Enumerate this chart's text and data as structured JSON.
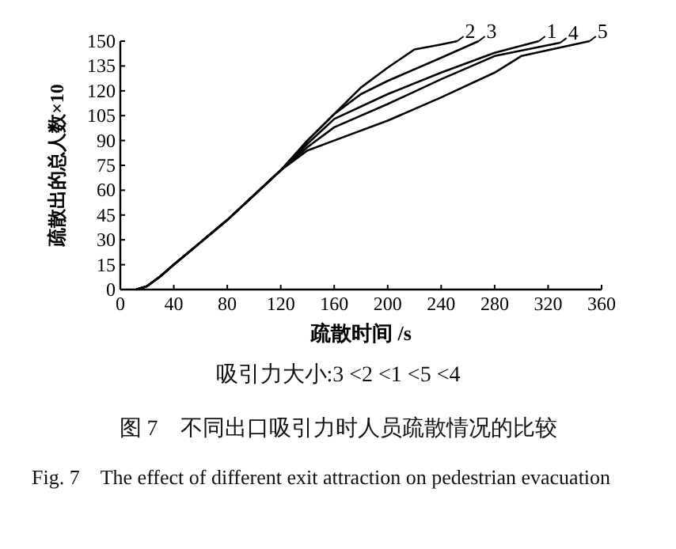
{
  "chart_data": {
    "type": "line",
    "xlabel": "疏散时间 /s",
    "ylabel": "疏散出的总人数×10",
    "xlim": [
      0,
      360
    ],
    "ylim": [
      0,
      150
    ],
    "xticks": [
      0,
      40,
      80,
      120,
      160,
      200,
      240,
      280,
      320,
      360
    ],
    "yticks": [
      0,
      15,
      30,
      45,
      60,
      75,
      90,
      105,
      120,
      135,
      150
    ],
    "grid": false,
    "legend": "top right",
    "marker": "none",
    "line_style": "solid",
    "series": [
      {
        "name": "2",
        "color": "#000000",
        "x": [
          12,
          20,
          30,
          40,
          80,
          120,
          140,
          160,
          180,
          200,
          220,
          240,
          252
        ],
        "values": [
          0,
          2,
          8,
          15,
          42,
          72,
          90,
          106,
          122,
          134,
          145,
          148,
          150
        ]
      },
      {
        "name": "3",
        "color": "#000000",
        "x": [
          12,
          20,
          30,
          40,
          80,
          120,
          140,
          160,
          180,
          200,
          240,
          268
        ],
        "values": [
          0,
          2,
          8,
          15,
          42,
          72,
          90,
          106,
          118,
          126,
          140,
          150
        ]
      },
      {
        "name": "1",
        "color": "#000000",
        "x": [
          12,
          20,
          30,
          40,
          80,
          120,
          140,
          160,
          200,
          240,
          280,
          313
        ],
        "values": [
          0,
          2,
          8,
          15,
          42,
          72,
          88,
          103,
          118,
          131,
          143,
          150
        ]
      },
      {
        "name": "4",
        "color": "#000000",
        "x": [
          12,
          20,
          30,
          40,
          80,
          120,
          140,
          160,
          200,
          240,
          280,
          329
        ],
        "values": [
          0,
          2,
          8,
          15,
          42,
          72,
          86,
          98,
          112,
          127,
          141,
          149
        ]
      },
      {
        "name": "5",
        "color": "#000000",
        "x": [
          12,
          20,
          30,
          40,
          80,
          120,
          140,
          160,
          200,
          240,
          280,
          300,
          351
        ],
        "values": [
          0,
          2,
          8,
          15,
          42,
          72,
          84,
          90,
          102,
          116,
          131,
          141,
          150
        ]
      }
    ],
    "annotations": [
      "吸引力大小:3 <2 <1 <5 <4",
      "图 7　不同出口吸引力时人员疏散情况的比较",
      "Fig. 7　The effect of different exit attraction on pedestrian evacuation"
    ]
  }
}
